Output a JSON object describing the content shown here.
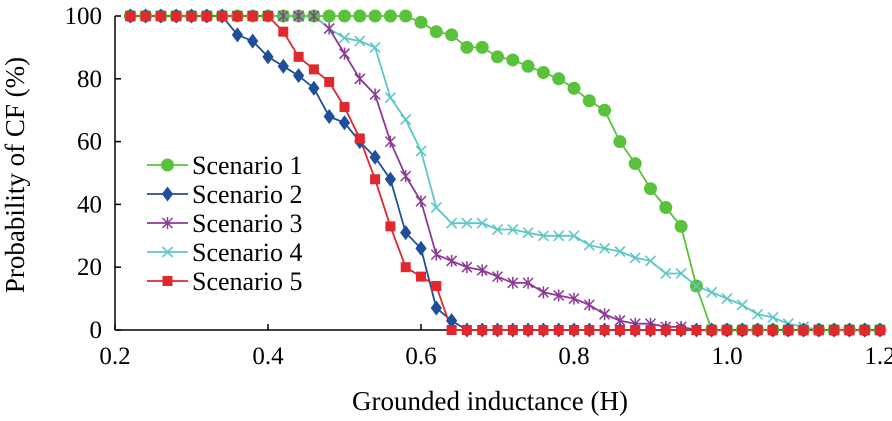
{
  "chart_data": {
    "type": "line",
    "title": "",
    "xlabel": "Grounded inductance (H)",
    "ylabel": "Probability of  CF (%)",
    "xlim": [
      0.2,
      1.2
    ],
    "ylim": [
      0,
      100
    ],
    "xticks": [
      "0.2",
      "0.4",
      "0.6",
      "0.8",
      "1.0",
      "1.2"
    ],
    "yticks": [
      "0",
      "20",
      "40",
      "60",
      "80",
      "100"
    ],
    "legend_position": "left-center",
    "grid": false,
    "x": [
      0.22,
      0.24,
      0.26,
      0.28,
      0.3,
      0.32,
      0.34,
      0.36,
      0.38,
      0.4,
      0.42,
      0.44,
      0.46,
      0.48,
      0.5,
      0.52,
      0.54,
      0.56,
      0.58,
      0.6,
      0.62,
      0.64,
      0.66,
      0.68,
      0.7,
      0.72,
      0.74,
      0.76,
      0.78,
      0.8,
      0.82,
      0.84,
      0.86,
      0.88,
      0.9,
      0.92,
      0.94,
      0.96,
      0.98,
      1.0,
      1.02,
      1.04,
      1.06,
      1.08,
      1.1,
      1.12,
      1.14,
      1.16,
      1.18,
      1.2
    ],
    "series": [
      {
        "name": "Scenario 1",
        "color": "#5ac23a",
        "marker": "circle",
        "values": [
          100,
          100,
          100,
          100,
          100,
          100,
          100,
          100,
          100,
          100,
          100,
          100,
          100,
          100,
          100,
          100,
          100,
          100,
          100,
          98,
          95,
          94,
          90,
          90,
          87,
          86,
          84,
          82,
          80,
          77,
          73,
          70,
          60,
          53,
          45,
          39,
          33,
          14,
          0,
          0,
          0,
          0,
          0,
          0,
          0,
          0,
          0,
          0,
          0,
          0
        ]
      },
      {
        "name": "Scenario 2",
        "color": "#1f4e9a",
        "marker": "diamond",
        "values": [
          100,
          100,
          100,
          100,
          100,
          100,
          100,
          94,
          92,
          87,
          84,
          81,
          77,
          68,
          66,
          60,
          55,
          48,
          31,
          26,
          7,
          3,
          0,
          0,
          0,
          0,
          0,
          0,
          0,
          0,
          0,
          0,
          0,
          0,
          0,
          0,
          0,
          0,
          0,
          0,
          0,
          0,
          0,
          0,
          0,
          0,
          0,
          0,
          0,
          0
        ]
      },
      {
        "name": "Scenario 3",
        "color": "#8c3a96",
        "marker": "asterisk",
        "values": [
          100,
          100,
          100,
          100,
          100,
          100,
          100,
          100,
          100,
          100,
          100,
          100,
          100,
          96,
          88,
          80,
          75,
          60,
          49,
          41,
          24,
          22,
          20,
          19,
          17,
          15,
          15,
          12,
          11,
          10,
          8,
          5,
          3,
          2,
          2,
          1,
          1,
          0,
          0,
          0,
          0,
          0,
          0,
          0,
          0,
          0,
          0,
          0,
          0,
          0
        ]
      },
      {
        "name": "Scenario 4",
        "color": "#5cc7c9",
        "marker": "x",
        "values": [
          100,
          100,
          100,
          100,
          100,
          100,
          100,
          100,
          100,
          100,
          100,
          100,
          100,
          96,
          93,
          92,
          90,
          74,
          67,
          57,
          39,
          34,
          34,
          34,
          32,
          32,
          31,
          30,
          30,
          30,
          27,
          26,
          25,
          23,
          22,
          18,
          18,
          14,
          12,
          10,
          8,
          5,
          4,
          2,
          1,
          0,
          0,
          0,
          0,
          0
        ]
      },
      {
        "name": "Scenario 5",
        "color": "#e0282e",
        "marker": "square",
        "values": [
          100,
          100,
          100,
          100,
          100,
          100,
          100,
          100,
          100,
          100,
          95,
          87,
          83,
          79,
          71,
          61,
          48,
          33,
          20,
          17,
          14,
          0,
          0,
          0,
          0,
          0,
          0,
          0,
          0,
          0,
          0,
          0,
          0,
          0,
          0,
          0,
          0,
          0,
          0,
          0,
          0,
          0,
          0,
          0,
          0,
          0,
          0,
          0,
          0,
          0
        ]
      }
    ]
  }
}
